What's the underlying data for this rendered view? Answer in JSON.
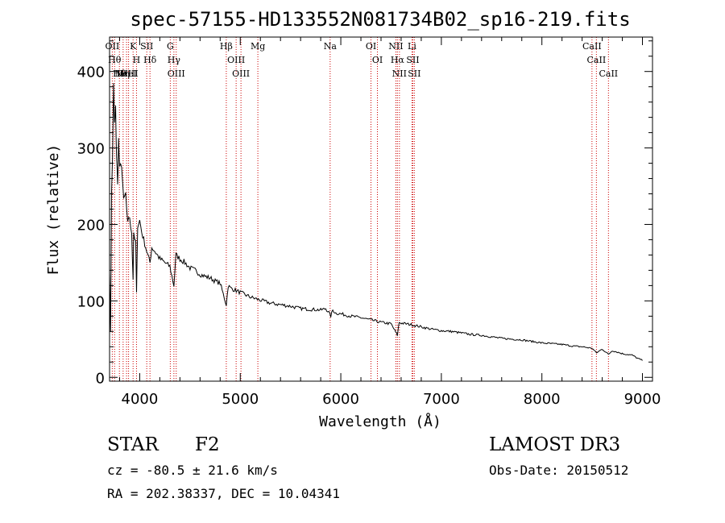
{
  "chart_data": {
    "type": "line",
    "title": "spec-57155-HD133552N081734B02_sp16-219.fits",
    "xlabel": "Wavelength (Å)",
    "ylabel": "Flux (relative)",
    "xlim": [
      3700,
      9100
    ],
    "ylim": [
      -5,
      445
    ],
    "xticks": [
      4000,
      5000,
      6000,
      7000,
      8000,
      9000
    ],
    "yticks": [
      0,
      100,
      200,
      300,
      400
    ],
    "series": [
      {
        "name": "flux",
        "x": [
          3700,
          3710,
          3720,
          3730,
          3740,
          3750,
          3760,
          3770,
          3780,
          3790,
          3800,
          3820,
          3840,
          3860,
          3880,
          3900,
          3920,
          3934,
          3940,
          3960,
          3968,
          3980,
          4000,
          4020,
          4050,
          4080,
          4102,
          4120,
          4150,
          4200,
          4250,
          4300,
          4340,
          4360,
          4400,
          4450,
          4500,
          4550,
          4600,
          4650,
          4700,
          4750,
          4800,
          4861,
          4880,
          4900,
          4950,
          5000,
          5050,
          5100,
          5150,
          5200,
          5250,
          5300,
          5400,
          5500,
          5600,
          5700,
          5800,
          5850,
          5880,
          5900,
          5920,
          5950,
          6000,
          6100,
          6200,
          6300,
          6400,
          6500,
          6563,
          6580,
          6600,
          6700,
          6800,
          6900,
          7000,
          7100,
          7200,
          7300,
          7400,
          7500,
          7600,
          7700,
          7800,
          7900,
          8000,
          8100,
          8200,
          8300,
          8400,
          8500,
          8542,
          8600,
          8662,
          8700,
          8800,
          8900,
          8950,
          9000
        ],
        "y": [
          140,
          60,
          240,
          290,
          380,
          330,
          350,
          290,
          250,
          310,
          270,
          280,
          230,
          240,
          200,
          210,
          185,
          130,
          190,
          175,
          110,
          200,
          205,
          190,
          175,
          160,
          150,
          170,
          165,
          155,
          150,
          145,
          120,
          160,
          155,
          150,
          143,
          140,
          135,
          132,
          130,
          126,
          123,
          95,
          120,
          117,
          114,
          111,
          108,
          105,
          103,
          101,
          99,
          97,
          95,
          93,
          90,
          89,
          88,
          90,
          85,
          80,
          88,
          84,
          83,
          80,
          78,
          75,
          72,
          70,
          55,
          72,
          71,
          69,
          66,
          63,
          61,
          60,
          58,
          56,
          55,
          53,
          51,
          50,
          49,
          47,
          45,
          44,
          43,
          41,
          40,
          38,
          32,
          37,
          30,
          35,
          31,
          29,
          25,
          22
        ]
      }
    ],
    "lines": [
      {
        "x": 3727,
        "label": "OII"
      },
      {
        "x": 3750,
        "label": "Hθ"
      },
      {
        "x": 3798,
        "label": "Hθ"
      },
      {
        "x": 3835,
        "label": "Hη"
      },
      {
        "x": 3869,
        "label": "NeIII"
      },
      {
        "x": 3889,
        "label": "HeI"
      },
      {
        "x": 3934,
        "label": "K"
      },
      {
        "x": 3968,
        "label": "H"
      },
      {
        "x": 4070,
        "label": "SII"
      },
      {
        "x": 4102,
        "label": "Hδ"
      },
      {
        "x": 4304,
        "label": "G"
      },
      {
        "x": 4340,
        "label": "Hγ"
      },
      {
        "x": 4363,
        "label": "OIII"
      },
      {
        "x": 4861,
        "label": "Hβ"
      },
      {
        "x": 4959,
        "label": "OIII"
      },
      {
        "x": 5007,
        "label": "OIII"
      },
      {
        "x": 5175,
        "label": "Mg"
      },
      {
        "x": 5894,
        "label": "Na"
      },
      {
        "x": 6300,
        "label": "OI"
      },
      {
        "x": 6364,
        "label": "OI"
      },
      {
        "x": 6548,
        "label": "NII"
      },
      {
        "x": 6563,
        "label": "Hα"
      },
      {
        "x": 6583,
        "label": "NII"
      },
      {
        "x": 6708,
        "label": "Li"
      },
      {
        "x": 6716,
        "label": "SII"
      },
      {
        "x": 6731,
        "label": "SII"
      },
      {
        "x": 8498,
        "label": "CaII"
      },
      {
        "x": 8542,
        "label": "CaII"
      },
      {
        "x": 8662,
        "label": "CaII"
      }
    ]
  },
  "info": {
    "object_class": "STAR",
    "subclass": "F2",
    "survey": "LAMOST DR3",
    "cz": "cz = -80.5 ± 21.6 km/s",
    "obs_date": "Obs-Date: 20150512",
    "coords": "RA = 202.38337, DEC =  10.04341"
  },
  "colors": {
    "spectrum": "#000000",
    "line_marker": "#cc0000",
    "axis": "#000000"
  }
}
